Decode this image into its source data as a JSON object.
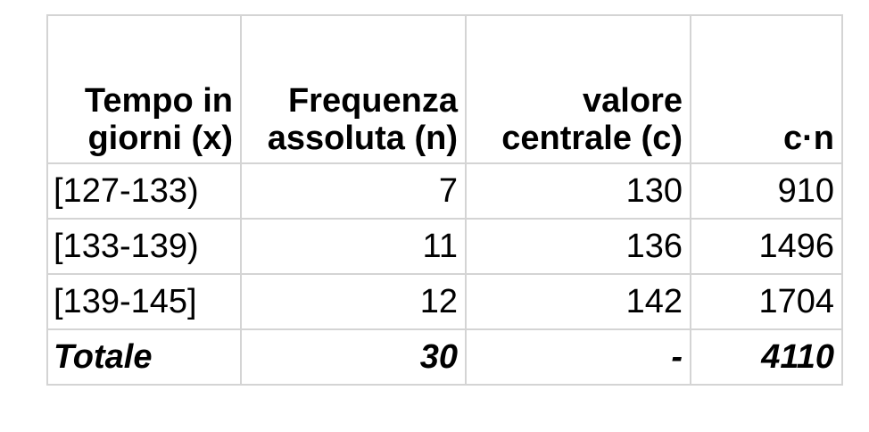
{
  "table": {
    "headers": [
      [
        "Tempo in",
        "giorni (x)"
      ],
      [
        "Frequenza",
        "assoluta (n)"
      ],
      [
        "valore",
        "centrale (c)"
      ],
      [
        "",
        "c·n"
      ]
    ],
    "rows": [
      [
        "[127-133)",
        "7",
        "130",
        "910"
      ],
      [
        "[133-139)",
        "11",
        "136",
        "1496"
      ],
      [
        "[139-145]",
        "12",
        "142",
        "1704"
      ]
    ],
    "total": [
      "Totale",
      "30",
      "-",
      "4110"
    ]
  }
}
